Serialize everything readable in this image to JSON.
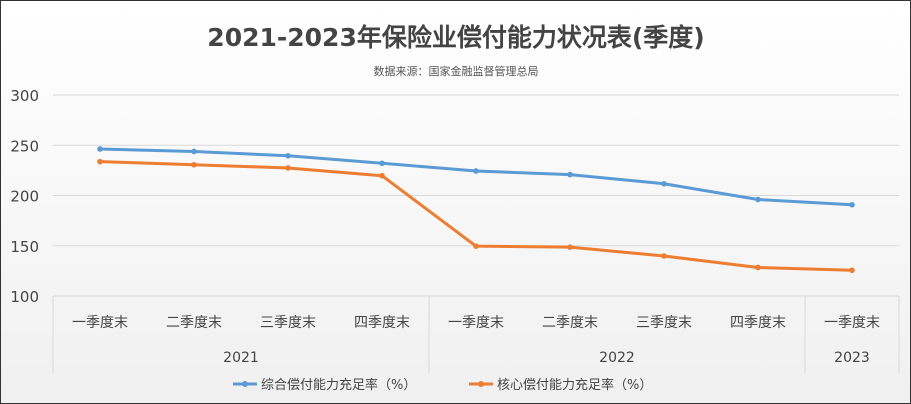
{
  "chart_data": {
    "type": "line",
    "title": "2021-2023年保险业偿付能力状况表(季度)",
    "subtitle": "数据来源：国家金融监督管理总局",
    "categories": [
      "一季度末",
      "二季度末",
      "三季度末",
      "四季度末",
      "一季度末",
      "二季度末",
      "三季度末",
      "四季度末",
      "一季度末"
    ],
    "groups": [
      {
        "label": "2021",
        "count": 4
      },
      {
        "label": "2022",
        "count": 4
      },
      {
        "label": "2023",
        "count": 1
      }
    ],
    "ylim": [
      100,
      300
    ],
    "yticks": [
      "100",
      "150",
      "200",
      "250",
      "300"
    ],
    "grid": true,
    "legend_position": "bottom",
    "series": [
      {
        "name": "综合偿付能力充足率（%）",
        "color": "#5b9bd5",
        "values": [
          246.3,
          243.8,
          239.5,
          232.1,
          224.4,
          220.8,
          211.7,
          196.0,
          190.8
        ]
      },
      {
        "name": "核心偿付能力充足率（%）",
        "color": "#ed7d31",
        "values": [
          233.7,
          230.6,
          227.4,
          219.7,
          149.6,
          148.6,
          139.8,
          128.4,
          125.6
        ]
      }
    ]
  }
}
